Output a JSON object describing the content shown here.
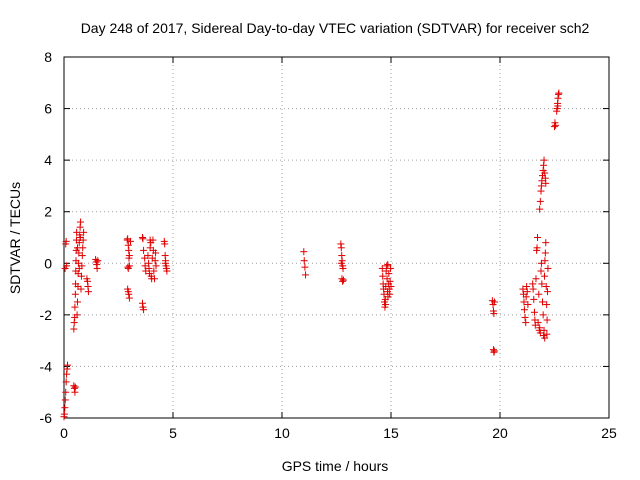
{
  "chart_data": {
    "type": "scatter",
    "title": "Day 248 of 2017, Sidereal Day-to-day VTEC variation (SDTVAR) for receiver sch2",
    "xlabel": "GPS time / hours",
    "ylabel": "SDTVAR / TECUs",
    "xlim": [
      0,
      25
    ],
    "ylim": [
      -6,
      8
    ],
    "xticks": [
      0,
      5,
      10,
      15,
      20,
      25
    ],
    "yticks": [
      -6,
      -4,
      -2,
      0,
      2,
      4,
      6,
      8
    ],
    "grid": true,
    "marker": "plus",
    "color": "#e00000",
    "series": [
      {
        "name": "sch2",
        "points": [
          [
            0.0,
            -5.95
          ],
          [
            0.02,
            -5.85
          ],
          [
            0.04,
            -5.6
          ],
          [
            0.06,
            -5.3
          ],
          [
            0.08,
            -5.0
          ],
          [
            0.1,
            -4.6
          ],
          [
            0.12,
            -4.3
          ],
          [
            0.14,
            -4.1
          ],
          [
            0.16,
            -3.95
          ],
          [
            0.05,
            -0.2
          ],
          [
            0.08,
            0.75
          ],
          [
            0.1,
            0.85
          ],
          [
            0.12,
            -0.1
          ],
          [
            0.45,
            -4.75
          ],
          [
            0.48,
            -4.85
          ],
          [
            0.5,
            -5.0
          ],
          [
            0.52,
            -4.8
          ],
          [
            0.45,
            -2.55
          ],
          [
            0.47,
            -2.3
          ],
          [
            0.49,
            -2.1
          ],
          [
            0.5,
            -1.7
          ],
          [
            0.52,
            -1.2
          ],
          [
            0.53,
            -0.8
          ],
          [
            0.54,
            -0.3
          ],
          [
            0.55,
            0.1
          ],
          [
            0.56,
            0.5
          ],
          [
            0.57,
            0.9
          ],
          [
            0.58,
            1.2
          ],
          [
            0.6,
            -2.0
          ],
          [
            0.62,
            -1.5
          ],
          [
            0.64,
            -0.9
          ],
          [
            0.65,
            -0.4
          ],
          [
            0.66,
            0.0
          ],
          [
            0.68,
            0.4
          ],
          [
            0.7,
            0.8
          ],
          [
            0.72,
            1.1
          ],
          [
            0.74,
            1.4
          ],
          [
            0.76,
            1.6
          ],
          [
            0.78,
            -1.0
          ],
          [
            0.8,
            -0.5
          ],
          [
            0.82,
            -0.1
          ],
          [
            0.84,
            0.3
          ],
          [
            0.86,
            0.6
          ],
          [
            0.88,
            0.9
          ],
          [
            0.9,
            1.2
          ],
          [
            0.75,
            1.0
          ],
          [
            0.7,
            -0.2
          ],
          [
            0.62,
            0.6
          ],
          [
            1.05,
            -0.6
          ],
          [
            1.1,
            -0.9
          ],
          [
            1.12,
            -1.1
          ],
          [
            1.08,
            -0.7
          ],
          [
            1.45,
            0.15
          ],
          [
            1.48,
            0.05
          ],
          [
            1.5,
            -0.05
          ],
          [
            1.52,
            -0.2
          ],
          [
            1.55,
            0.1
          ],
          [
            2.9,
            0.9
          ],
          [
            2.92,
            0.95
          ],
          [
            2.95,
            0.7
          ],
          [
            2.97,
            0.5
          ],
          [
            3.0,
            0.3
          ],
          [
            2.98,
            0.2
          ],
          [
            2.93,
            -0.15
          ],
          [
            2.95,
            -0.2
          ],
          [
            3.0,
            -0.1
          ],
          [
            2.95,
            -1.1
          ],
          [
            2.97,
            -1.2
          ],
          [
            3.0,
            -1.35
          ],
          [
            2.92,
            -1.0
          ],
          [
            3.05,
            0.85
          ],
          [
            3.6,
            1.0
          ],
          [
            3.62,
            0.95
          ],
          [
            3.65,
            0.5
          ],
          [
            3.7,
            0.2
          ],
          [
            3.72,
            -0.1
          ],
          [
            3.75,
            -0.3
          ],
          [
            3.6,
            -1.55
          ],
          [
            3.62,
            -1.7
          ],
          [
            3.65,
            -1.8
          ],
          [
            3.85,
            0.3
          ],
          [
            3.88,
            0.0
          ],
          [
            3.9,
            -0.2
          ],
          [
            3.92,
            -0.4
          ],
          [
            3.95,
            0.6
          ],
          [
            3.98,
            0.8
          ],
          [
            4.0,
            -0.5
          ],
          [
            4.02,
            -0.6
          ],
          [
            4.05,
            0.2
          ],
          [
            4.08,
            0.9
          ],
          [
            4.1,
            0.5
          ],
          [
            4.12,
            -0.3
          ],
          [
            4.15,
            -0.6
          ],
          [
            4.18,
            0.1
          ],
          [
            4.2,
            0.4
          ],
          [
            4.22,
            -0.1
          ],
          [
            3.95,
            0.9
          ],
          [
            4.6,
            0.85
          ],
          [
            4.62,
            0.75
          ],
          [
            4.64,
            0.3
          ],
          [
            4.66,
            0.1
          ],
          [
            4.68,
            -0.1
          ],
          [
            4.7,
            -0.2
          ],
          [
            4.72,
            -0.3
          ],
          [
            4.65,
            0.0
          ],
          [
            11.0,
            0.45
          ],
          [
            11.02,
            0.1
          ],
          [
            11.05,
            -0.15
          ],
          [
            11.08,
            -0.45
          ],
          [
            12.7,
            0.75
          ],
          [
            12.72,
            0.6
          ],
          [
            12.74,
            0.3
          ],
          [
            12.76,
            0.1
          ],
          [
            12.78,
            -0.1
          ],
          [
            12.8,
            -0.2
          ],
          [
            12.75,
            -0.6
          ],
          [
            12.78,
            -0.7
          ],
          [
            12.82,
            -0.65
          ],
          [
            12.72,
            0.0
          ],
          [
            14.6,
            -0.2
          ],
          [
            14.62,
            -0.5
          ],
          [
            14.64,
            -0.8
          ],
          [
            14.66,
            -1.0
          ],
          [
            14.68,
            -1.2
          ],
          [
            14.7,
            -1.5
          ],
          [
            14.72,
            -1.7
          ],
          [
            14.74,
            -1.4
          ],
          [
            14.76,
            -0.9
          ],
          [
            14.78,
            -0.3
          ],
          [
            14.8,
            -0.1
          ],
          [
            14.82,
            -0.6
          ],
          [
            14.84,
            -1.1
          ],
          [
            14.86,
            -1.3
          ],
          [
            14.88,
            -0.8
          ],
          [
            14.9,
            -0.4
          ],
          [
            14.92,
            -1.0
          ],
          [
            14.94,
            -1.2
          ],
          [
            14.96,
            -0.7
          ],
          [
            14.98,
            -0.2
          ],
          [
            15.0,
            -0.9
          ],
          [
            14.85,
            -0.05
          ],
          [
            14.75,
            -1.6
          ],
          [
            19.65,
            -1.45
          ],
          [
            19.68,
            -1.6
          ],
          [
            19.7,
            -1.85
          ],
          [
            19.72,
            -1.95
          ],
          [
            19.75,
            -1.5
          ],
          [
            19.7,
            -3.35
          ],
          [
            19.72,
            -3.45
          ],
          [
            19.74,
            -3.4
          ],
          [
            21.05,
            -1.0
          ],
          [
            21.08,
            -1.2
          ],
          [
            21.1,
            -1.5
          ],
          [
            21.12,
            -1.8
          ],
          [
            21.15,
            -2.1
          ],
          [
            21.18,
            -2.3
          ],
          [
            21.2,
            -1.3
          ],
          [
            21.22,
            -0.9
          ],
          [
            21.25,
            -1.1
          ],
          [
            21.28,
            -1.6
          ],
          [
            21.5,
            -0.8
          ],
          [
            21.52,
            -1.0
          ],
          [
            21.55,
            -1.4
          ],
          [
            21.58,
            -1.9
          ],
          [
            21.6,
            -2.2
          ],
          [
            21.62,
            -2.4
          ],
          [
            21.65,
            -0.6
          ],
          [
            21.68,
            0.5
          ],
          [
            21.7,
            0.6
          ],
          [
            21.72,
            1.0
          ],
          [
            21.75,
            -2.3
          ],
          [
            21.78,
            -1.2
          ],
          [
            21.8,
            -2.6
          ],
          [
            21.82,
            -2.5
          ],
          [
            21.85,
            -2.7
          ],
          [
            21.88,
            -0.3
          ],
          [
            21.9,
            0.0
          ],
          [
            21.92,
            -0.8
          ],
          [
            21.95,
            -1.5
          ],
          [
            21.98,
            -2.0
          ],
          [
            22.0,
            -2.8
          ],
          [
            22.02,
            -2.6
          ],
          [
            22.04,
            -0.5
          ],
          [
            22.06,
            0.1
          ],
          [
            22.08,
            0.4
          ],
          [
            22.1,
            0.8
          ],
          [
            22.12,
            -0.9
          ],
          [
            22.14,
            -1.6
          ],
          [
            22.16,
            -2.2
          ],
          [
            22.18,
            -1.1
          ],
          [
            22.2,
            -0.2
          ],
          [
            22.05,
            -2.9
          ],
          [
            22.15,
            -2.75
          ],
          [
            21.82,
            2.1
          ],
          [
            21.85,
            2.4
          ],
          [
            21.88,
            2.8
          ],
          [
            21.9,
            3.0
          ],
          [
            21.92,
            3.2
          ],
          [
            21.95,
            3.4
          ],
          [
            21.98,
            3.6
          ],
          [
            22.0,
            3.8
          ],
          [
            22.02,
            4.0
          ],
          [
            22.05,
            3.5
          ],
          [
            22.08,
            3.3
          ],
          [
            22.1,
            3.1
          ],
          [
            22.5,
            5.3
          ],
          [
            22.52,
            5.45
          ],
          [
            22.55,
            5.35
          ],
          [
            22.6,
            5.9
          ],
          [
            22.62,
            6.0
          ],
          [
            22.64,
            6.2
          ],
          [
            22.66,
            6.4
          ],
          [
            22.68,
            6.55
          ],
          [
            22.7,
            6.6
          ],
          [
            22.65,
            6.1
          ]
        ]
      }
    ]
  }
}
